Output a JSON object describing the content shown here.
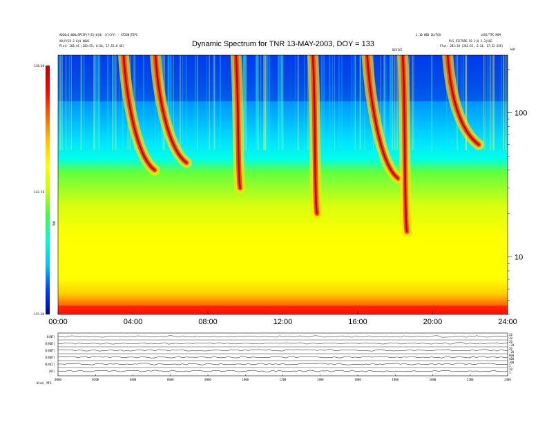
{
  "header": {
    "left_line1": "A030>3|000>SPCSP|P|S|(0|0) (Y|CYY) -  ATION|TEPC",
    "left_line2": "AB|P(E8 2.0|0 0003",
    "left_line3": "Plot:  283:45 (283:55, 0:50, 17:55:0 GE)",
    "right_line1": "1.10 WED 2U/FOX",
    "right_line2": "LOSS/TPC-MOM",
    "right_line3": "PLS_PICTURE F0 2|0 2.3|4GE",
    "right_line4": "Plot:  283:28 (283:55, 2:14, 17:32 GSE)",
    "center_marker": "DEVICE"
  },
  "chart_data": [
    {
      "type": "heatmap",
      "title": "Dynamic Spectrum for TNR 13-MAY-2003, DOY = 133",
      "x_tick_labels": [
        "00:00",
        "04:00",
        "08:00",
        "12:00",
        "16:00",
        "20:00",
        "24:00"
      ],
      "x_range_hours": [
        0,
        24
      ],
      "y_scale": "log",
      "y_tick_labels": [
        "10",
        "100"
      ],
      "y_unit_label": "kHz",
      "y_range_khz": [
        4,
        250
      ],
      "colorbar": {
        "label": "TNR",
        "tick_labels": [
          "-130.00",
          "-142.50",
          "-155.00"
        ],
        "range": [
          -155.0,
          -130.0
        ],
        "colormap": [
          "#0000a0",
          "#0040ff",
          "#00c8ff",
          "#00ffd0",
          "#40ff40",
          "#c8ff00",
          "#ffff00",
          "#ffc000",
          "#ff6000",
          "#ff0000",
          "#c00000"
        ]
      },
      "features": [
        {
          "name": "type III burst",
          "start_hour": 3.5,
          "peak_khz": 250,
          "end_khz": 40
        },
        {
          "name": "type III burst",
          "start_hour": 5.2,
          "peak_khz": 250,
          "end_khz": 45
        },
        {
          "name": "type III burst",
          "start_hour": 16.5,
          "peak_khz": 250,
          "end_khz": 35
        },
        {
          "name": "type III burst",
          "start_hour": 20.8,
          "peak_khz": 250,
          "end_khz": 60
        },
        {
          "name": "bursts",
          "start_hour": 9.5,
          "peak_khz": 250,
          "end_khz": 30
        },
        {
          "name": "bursts",
          "start_hour": 13.6,
          "peak_khz": 250,
          "end_khz": 20
        },
        {
          "name": "bursts",
          "start_hour": 18.4,
          "peak_khz": 250,
          "end_khz": 15
        }
      ]
    },
    {
      "type": "line",
      "panels": [
        {
          "left_label": "B(NT)",
          "right_ticks": [
            "20",
            "10"
          ]
        },
        {
          "left_label": "B(NOT)",
          "right_ticks": [
            "20",
            "-20"
          ]
        },
        {
          "left_label": "B(NOT)",
          "right_ticks": [
            "20",
            "-20"
          ]
        },
        {
          "left_label": "B(NOT)",
          "right_ticks": [
            "800",
            "400"
          ]
        },
        {
          "left_label": "N(NCC)",
          "right_ticks": [
            "100",
            "1"
          ]
        },
        {
          "left_label": "(KF)",
          "right_ticks": [
            "10",
            "1"
          ]
        }
      ],
      "x_tick_labels": [
        "0000",
        "0200",
        "0400",
        "0600",
        "0800",
        "1000",
        "1200",
        "1400",
        "1600",
        "1800",
        "2000",
        "2200",
        "2400"
      ],
      "footer_left": "Wind,    MFI"
    }
  ]
}
